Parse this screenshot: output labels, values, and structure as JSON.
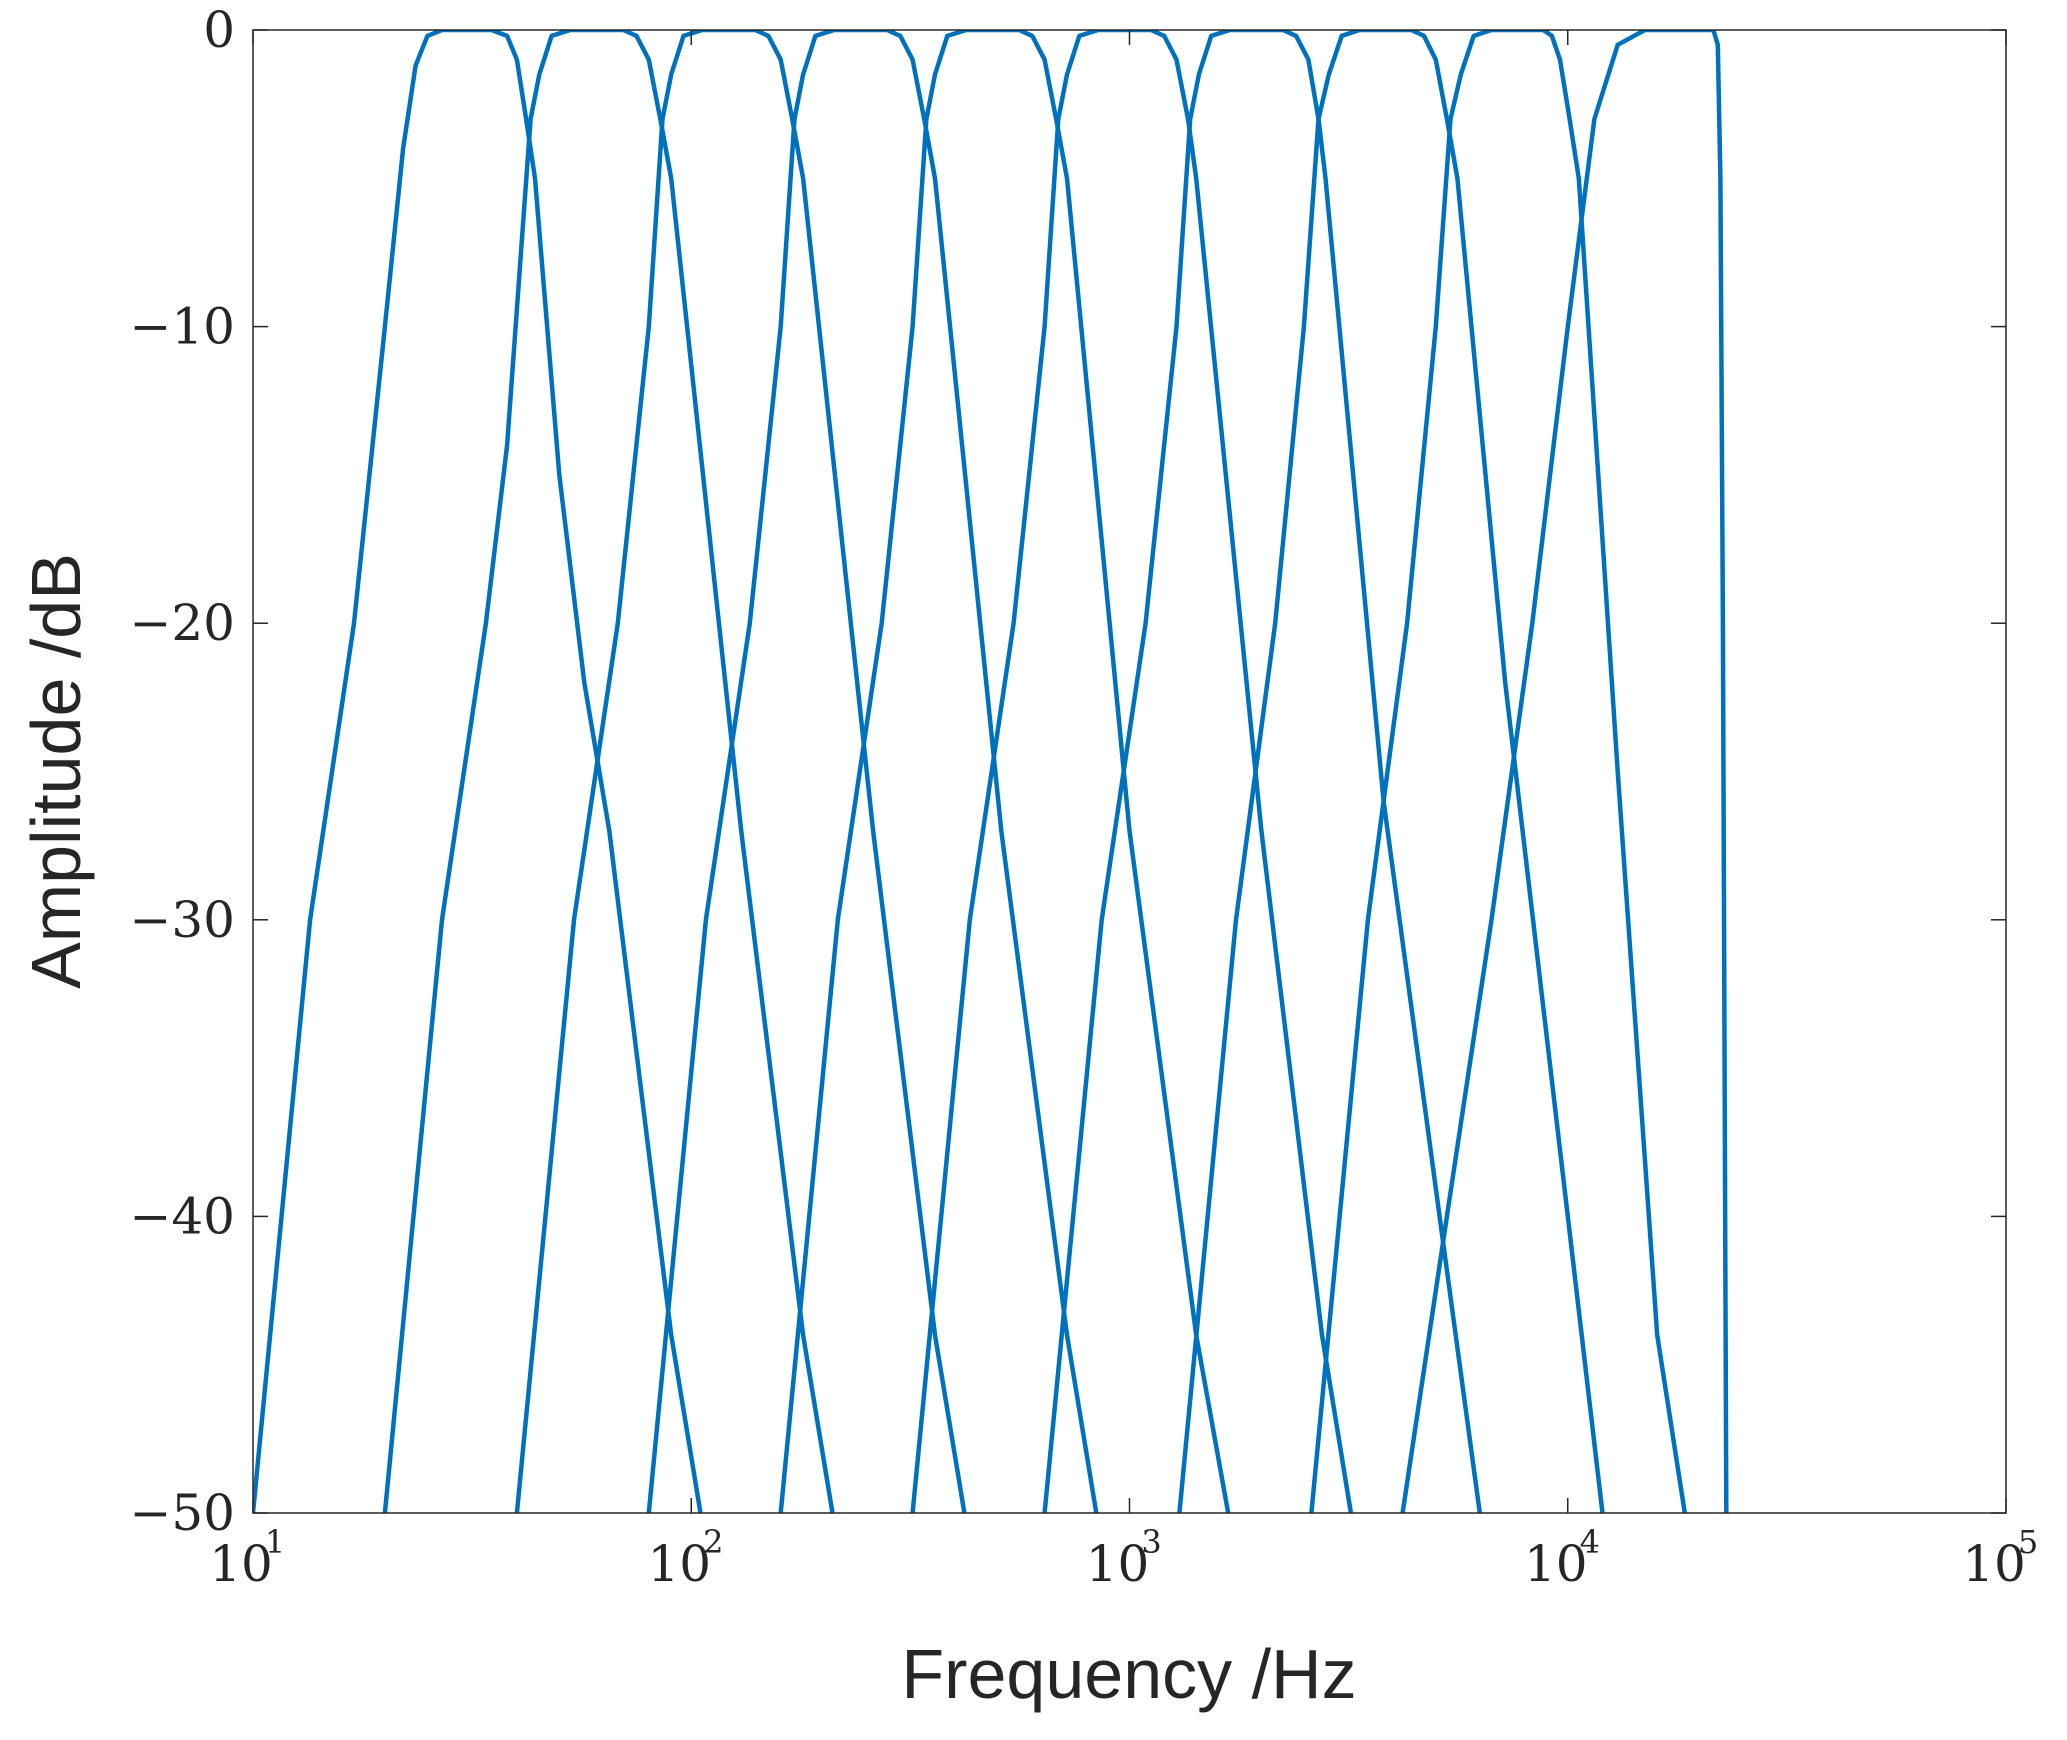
{
  "chart_data": {
    "type": "line",
    "title": "",
    "xlabel": "Frequency /Hz",
    "ylabel": "Amplitude /dB",
    "xscale": "log",
    "xlim": [
      10,
      100000
    ],
    "ylim": [
      -50,
      0
    ],
    "grid": false,
    "line_color": "#0072BD",
    "x_ticks": [
      {
        "base": "10",
        "exp": "1"
      },
      {
        "base": "10",
        "exp": "2"
      },
      {
        "base": "10",
        "exp": "3"
      },
      {
        "base": "10",
        "exp": "4"
      },
      {
        "base": "10",
        "exp": "5"
      }
    ],
    "y_ticks": [
      "0",
      "−10",
      "−20",
      "−30",
      "−40",
      "−50"
    ],
    "series": [
      {
        "points": [
          [
            10,
            -50
          ],
          [
            13.5,
            -30
          ],
          [
            17,
            -20
          ],
          [
            20,
            -10
          ],
          [
            22,
            -4
          ],
          [
            23.5,
            -1.2
          ],
          [
            25,
            -0.2
          ],
          [
            27,
            0
          ],
          [
            35,
            0
          ],
          [
            38,
            -0.2
          ],
          [
            40,
            -1
          ],
          [
            42,
            -3
          ],
          [
            44,
            -5
          ],
          [
            50,
            -15
          ],
          [
            57,
            -22
          ],
          [
            65,
            -27
          ],
          [
            90,
            -44
          ],
          [
            105,
            -50
          ]
        ]
      },
      {
        "points": [
          [
            20,
            -50
          ],
          [
            27,
            -30
          ],
          [
            34,
            -20
          ],
          [
            38,
            -14
          ],
          [
            43,
            -3
          ],
          [
            45,
            -1.5
          ],
          [
            48,
            -0.2
          ],
          [
            53,
            0
          ],
          [
            70,
            0
          ],
          [
            75,
            -0.2
          ],
          [
            80,
            -1
          ],
          [
            85,
            -3
          ],
          [
            90,
            -5
          ],
          [
            130,
            -27
          ],
          [
            180,
            -44
          ],
          [
            210,
            -50
          ]
        ]
      },
      {
        "points": [
          [
            40,
            -50
          ],
          [
            54,
            -30
          ],
          [
            68,
            -20
          ],
          [
            80,
            -10
          ],
          [
            86,
            -3
          ],
          [
            90,
            -1.5
          ],
          [
            96,
            -0.2
          ],
          [
            106,
            0
          ],
          [
            140,
            0
          ],
          [
            150,
            -0.2
          ],
          [
            160,
            -1
          ],
          [
            170,
            -3
          ],
          [
            180,
            -5
          ],
          [
            260,
            -27
          ],
          [
            360,
            -44
          ],
          [
            420,
            -50
          ]
        ]
      },
      {
        "points": [
          [
            80,
            -50
          ],
          [
            108,
            -30
          ],
          [
            136,
            -20
          ],
          [
            160,
            -10
          ],
          [
            172,
            -3
          ],
          [
            180,
            -1.5
          ],
          [
            192,
            -0.2
          ],
          [
            212,
            0
          ],
          [
            280,
            0
          ],
          [
            300,
            -0.2
          ],
          [
            320,
            -1
          ],
          [
            340,
            -3
          ],
          [
            360,
            -5
          ],
          [
            510,
            -27
          ],
          [
            720,
            -44
          ],
          [
            840,
            -50
          ]
        ]
      },
      {
        "points": [
          [
            160,
            -50
          ],
          [
            216,
            -30
          ],
          [
            272,
            -20
          ],
          [
            320,
            -10
          ],
          [
            344,
            -3
          ],
          [
            360,
            -1.5
          ],
          [
            384,
            -0.2
          ],
          [
            424,
            0
          ],
          [
            560,
            0
          ],
          [
            600,
            -0.2
          ],
          [
            640,
            -1
          ],
          [
            680,
            -3
          ],
          [
            720,
            -5
          ],
          [
            1000,
            -27
          ],
          [
            1420,
            -44
          ],
          [
            1680,
            -50
          ]
        ]
      },
      {
        "points": [
          [
            320,
            -50
          ],
          [
            432,
            -30
          ],
          [
            544,
            -20
          ],
          [
            640,
            -10
          ],
          [
            688,
            -3
          ],
          [
            720,
            -1.5
          ],
          [
            768,
            -0.2
          ],
          [
            848,
            0
          ],
          [
            1120,
            0
          ],
          [
            1200,
            -0.2
          ],
          [
            1280,
            -1
          ],
          [
            1360,
            -3
          ],
          [
            1420,
            -5
          ],
          [
            2000,
            -27
          ],
          [
            2750,
            -44
          ],
          [
            3200,
            -50
          ]
        ]
      },
      {
        "points": [
          [
            640,
            -50
          ],
          [
            864,
            -30
          ],
          [
            1088,
            -20
          ],
          [
            1280,
            -10
          ],
          [
            1376,
            -3
          ],
          [
            1440,
            -1.5
          ],
          [
            1536,
            -0.2
          ],
          [
            1696,
            0
          ],
          [
            2240,
            0
          ],
          [
            2400,
            -0.2
          ],
          [
            2560,
            -1
          ],
          [
            2700,
            -3
          ],
          [
            2800,
            -5
          ],
          [
            3800,
            -26
          ],
          [
            5100,
            -40
          ],
          [
            6300,
            -50
          ]
        ]
      },
      {
        "points": [
          [
            1300,
            -50
          ],
          [
            1750,
            -30
          ],
          [
            2150,
            -20
          ],
          [
            2500,
            -10
          ],
          [
            2700,
            -3
          ],
          [
            2850,
            -1.5
          ],
          [
            3050,
            -0.2
          ],
          [
            3350,
            0
          ],
          [
            4400,
            0
          ],
          [
            4700,
            -0.2
          ],
          [
            5000,
            -1
          ],
          [
            5300,
            -3
          ],
          [
            5600,
            -5
          ],
          [
            7200,
            -22
          ],
          [
            10000,
            -40
          ],
          [
            12000,
            -50
          ]
        ]
      },
      {
        "points": [
          [
            2600,
            -50
          ],
          [
            3500,
            -30
          ],
          [
            4300,
            -20
          ],
          [
            5000,
            -10
          ],
          [
            5400,
            -3
          ],
          [
            5700,
            -1.5
          ],
          [
            6100,
            -0.2
          ],
          [
            6700,
            0
          ],
          [
            8800,
            0
          ],
          [
            9200,
            -0.2
          ],
          [
            9600,
            -1
          ],
          [
            10100,
            -3
          ],
          [
            10600,
            -5
          ],
          [
            13000,
            -25
          ],
          [
            16000,
            -44
          ],
          [
            18500,
            -50
          ]
        ]
      },
      {
        "points": [
          [
            4200,
            -50
          ],
          [
            5300,
            -40
          ],
          [
            6700,
            -30
          ],
          [
            8300,
            -20
          ],
          [
            10000,
            -10
          ],
          [
            11500,
            -3
          ],
          [
            13000,
            -0.5
          ],
          [
            15000,
            0
          ],
          [
            21500,
            0
          ],
          [
            22000,
            -0.5
          ],
          [
            22300,
            -5
          ],
          [
            22600,
            -20
          ],
          [
            23000,
            -50
          ]
        ]
      }
    ]
  }
}
